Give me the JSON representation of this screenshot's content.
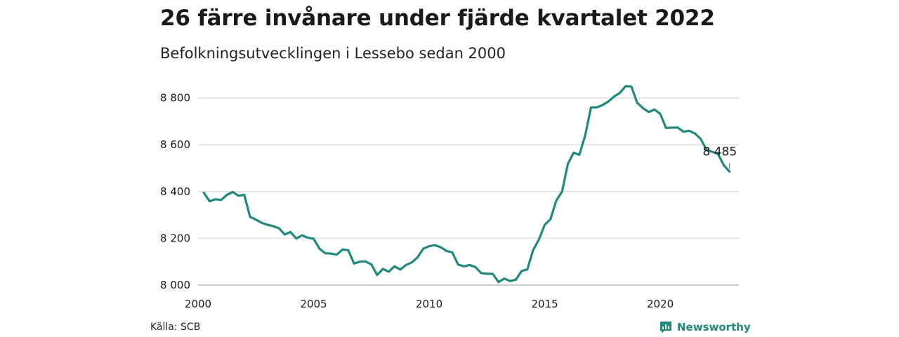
{
  "title": "26 färre invånare under fjärde kvartalet 2022",
  "subtitle": "Befolkningsutvecklingen i Lessebo sedan 2000",
  "source": "Källa: SCB",
  "brand": "Newsworthy",
  "colors": {
    "line": "#20897c",
    "grid": "#dddddd",
    "axis": "#bbbbbb"
  },
  "chart_data": {
    "type": "line",
    "title": "26 färre invånare under fjärde kvartalet 2022",
    "subtitle": "Befolkningsutvecklingen i Lessebo sedan 2000",
    "xlabel": "",
    "ylabel": "",
    "xlim": [
      2000,
      2023.4
    ],
    "ylim": [
      8000,
      8880
    ],
    "x_ticks": [
      2000,
      2005,
      2010,
      2015,
      2020
    ],
    "x_tick_labels": [
      "2000",
      "2005",
      "2010",
      "2015",
      "2020"
    ],
    "y_ticks": [
      8000,
      8200,
      8400,
      8600,
      8800
    ],
    "y_tick_labels": [
      "8 000",
      "8 200",
      "8 400",
      "8 600",
      "8 800"
    ],
    "grid": true,
    "last_value_label": "8 485",
    "series": [
      {
        "x": [
          2000.25,
          2000.5,
          2000.75,
          2001.0,
          2001.25,
          2001.5,
          2001.75,
          2002.0,
          2002.25,
          2002.5,
          2002.75,
          2003.0,
          2003.25,
          2003.5,
          2003.75,
          2004.0,
          2004.25,
          2004.5,
          2004.75,
          2005.0,
          2005.25,
          2005.5,
          2005.75,
          2006.0,
          2006.25,
          2006.5,
          2006.75,
          2007.0,
          2007.25,
          2007.5,
          2007.75,
          2008.0,
          2008.25,
          2008.5,
          2008.75,
          2009.0,
          2009.25,
          2009.5,
          2009.75,
          2010.0,
          2010.25,
          2010.5,
          2010.75,
          2011.0,
          2011.25,
          2011.5,
          2011.75,
          2012.0,
          2012.25,
          2012.5,
          2012.75,
          2013.0,
          2013.25,
          2013.5,
          2013.75,
          2014.0,
          2014.25,
          2014.5,
          2014.75,
          2015.0,
          2015.25,
          2015.5,
          2015.75,
          2016.0,
          2016.25,
          2016.5,
          2016.75,
          2017.0,
          2017.25,
          2017.5,
          2017.75,
          2018.0,
          2018.25,
          2018.5,
          2018.75,
          2019.0,
          2019.25,
          2019.5,
          2019.75,
          2020.0,
          2020.25,
          2020.5,
          2020.75,
          2021.0,
          2021.25,
          2021.5,
          2021.75,
          2022.0,
          2022.25,
          2022.5,
          2022.75,
          2023.0
        ],
        "values": [
          8395,
          8358,
          8367,
          8364,
          8386,
          8398,
          8382,
          8386,
          8292,
          8280,
          8266,
          8258,
          8252,
          8243,
          8216,
          8227,
          8199,
          8213,
          8202,
          8198,
          8156,
          8136,
          8135,
          8130,
          8152,
          8149,
          8092,
          8100,
          8101,
          8088,
          8043,
          8069,
          8057,
          8080,
          8066,
          8086,
          8097,
          8119,
          8156,
          8166,
          8171,
          8162,
          8146,
          8140,
          8088,
          8080,
          8086,
          8077,
          8051,
          8048,
          8048,
          8013,
          8028,
          8017,
          8023,
          8060,
          8067,
          8150,
          8195,
          8258,
          8282,
          8361,
          8400,
          8518,
          8566,
          8557,
          8640,
          8760,
          8760,
          8770,
          8785,
          8806,
          8822,
          8851,
          8849,
          8780,
          8757,
          8740,
          8751,
          8732,
          8672,
          8673,
          8674,
          8656,
          8660,
          8648,
          8625,
          8579,
          8570,
          8560,
          8512,
          8485
        ]
      }
    ]
  }
}
